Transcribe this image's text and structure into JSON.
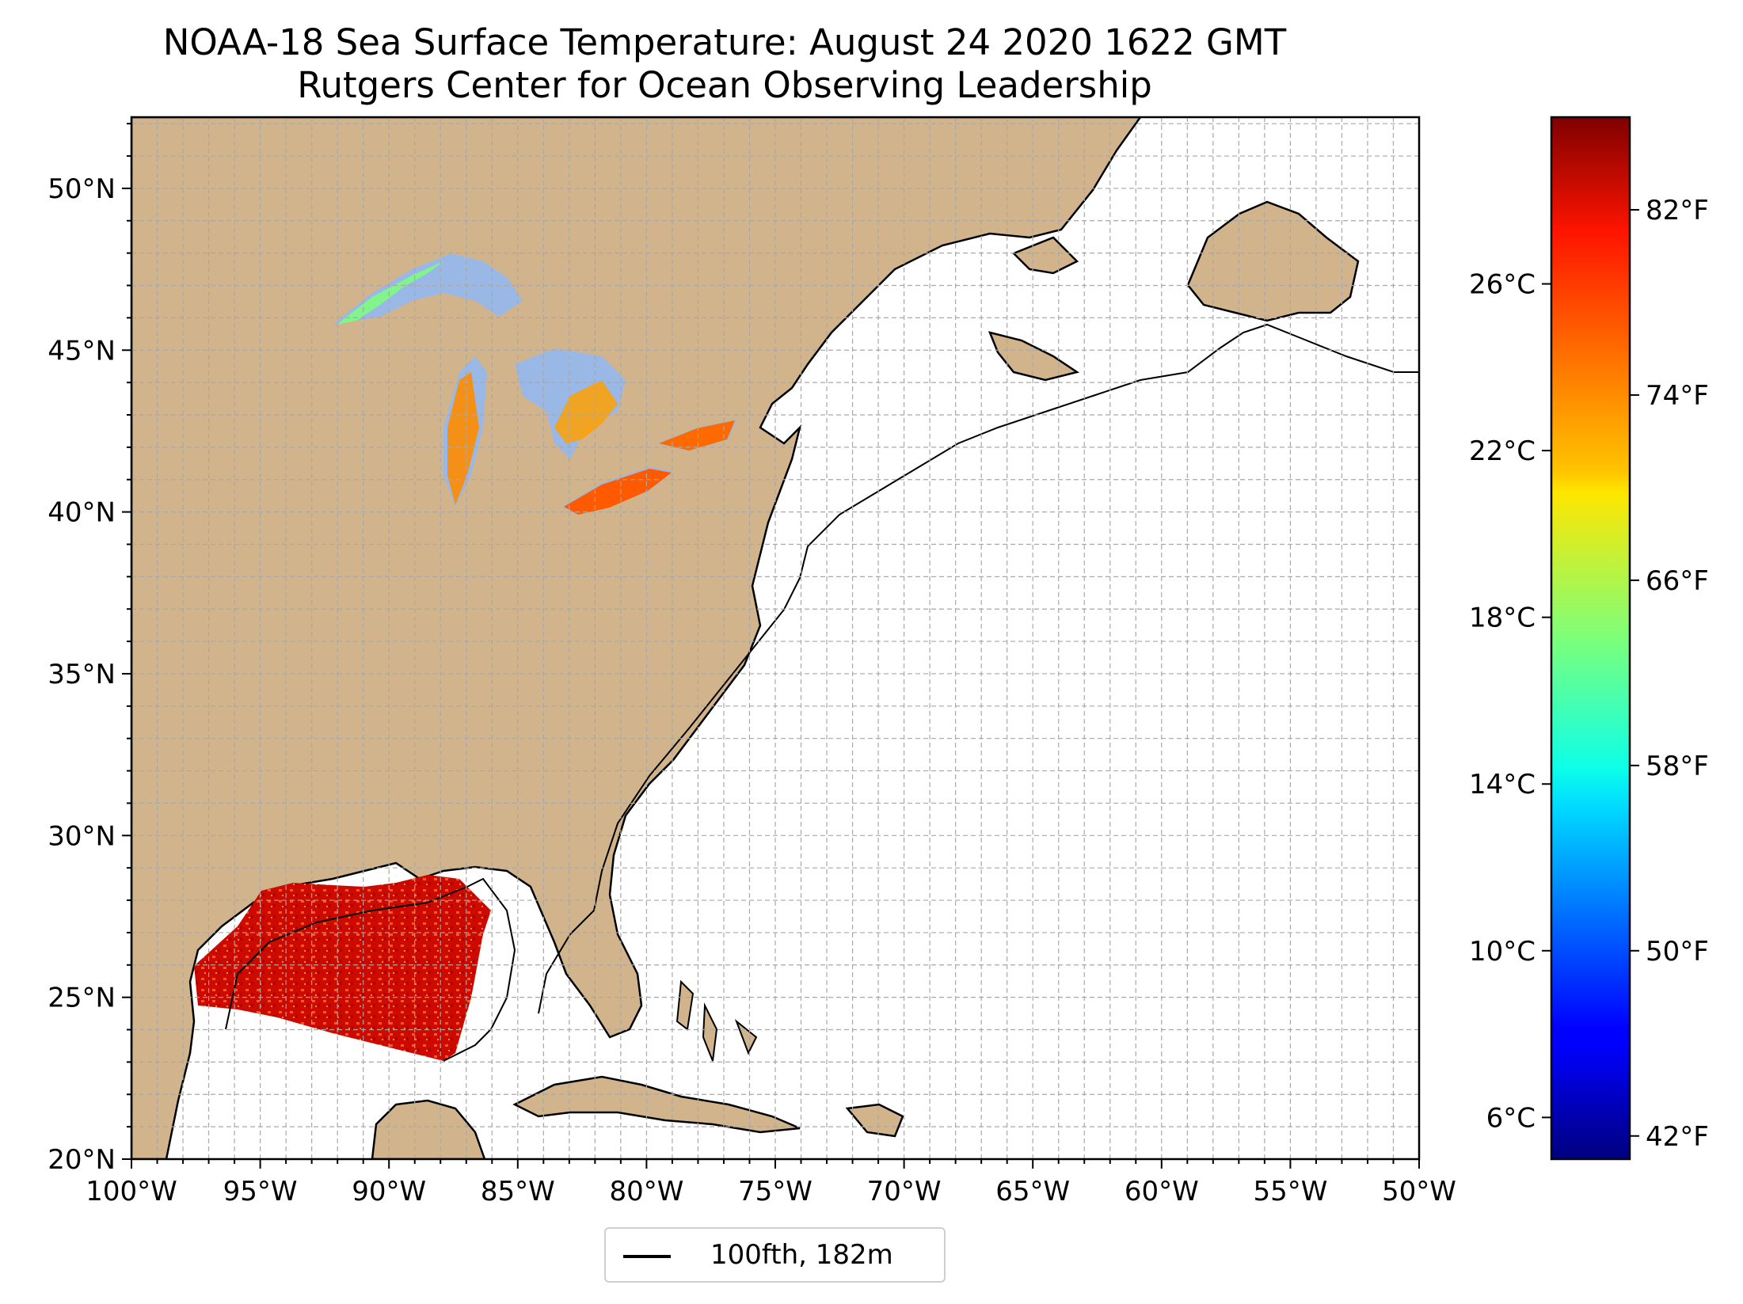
{
  "map": {
    "title_line1": "NOAA-18 Sea Surface Temperature: August 24 2020 1622 GMT",
    "title_line2": "Rutgers Center for Ocean Observing Leadership",
    "lon_range": [
      -100,
      -50
    ],
    "lat_range": [
      20,
      52.2
    ],
    "lon_ticks": [
      {
        "value": -100,
        "label": "100°W"
      },
      {
        "value": -95,
        "label": "95°W"
      },
      {
        "value": -90,
        "label": "90°W"
      },
      {
        "value": -85,
        "label": "85°W"
      },
      {
        "value": -80,
        "label": "80°W"
      },
      {
        "value": -75,
        "label": "75°W"
      },
      {
        "value": -70,
        "label": "70°W"
      },
      {
        "value": -65,
        "label": "65°W"
      },
      {
        "value": -60,
        "label": "60°W"
      },
      {
        "value": -55,
        "label": "55°W"
      },
      {
        "value": -50,
        "label": "50°W"
      }
    ],
    "lat_ticks": [
      {
        "value": 20,
        "label": "20°N"
      },
      {
        "value": 25,
        "label": "25°N"
      },
      {
        "value": 30,
        "label": "30°N"
      },
      {
        "value": 35,
        "label": "35°N"
      },
      {
        "value": 40,
        "label": "40°N"
      },
      {
        "value": 45,
        "label": "45°N"
      },
      {
        "value": 50,
        "label": "50°N"
      }
    ],
    "grid": "dashed, 1 degree",
    "land_color": "#d2b48c",
    "lake_color": "#9ab8e6",
    "ocean_color": "#ffffff",
    "contour_color": "#000000",
    "legend": {
      "label": "100fth, 182m",
      "position": "lower-center"
    }
  },
  "colorbar": {
    "colormap": "jet",
    "range_c": [
      5,
      30
    ],
    "celsius_ticks": [
      {
        "value": 6,
        "label": "6°C"
      },
      {
        "value": 10,
        "label": "10°C"
      },
      {
        "value": 14,
        "label": "14°C"
      },
      {
        "value": 18,
        "label": "18°C"
      },
      {
        "value": 22,
        "label": "22°C"
      },
      {
        "value": 26,
        "label": "26°C"
      }
    ],
    "fahrenheit_ticks": [
      {
        "value": 42,
        "label": "42°F"
      },
      {
        "value": 50,
        "label": "50°F"
      },
      {
        "value": 58,
        "label": "58°F"
      },
      {
        "value": 66,
        "label": "66°F"
      },
      {
        "value": 74,
        "label": "74°F"
      },
      {
        "value": 82,
        "label": "82°F"
      }
    ]
  }
}
